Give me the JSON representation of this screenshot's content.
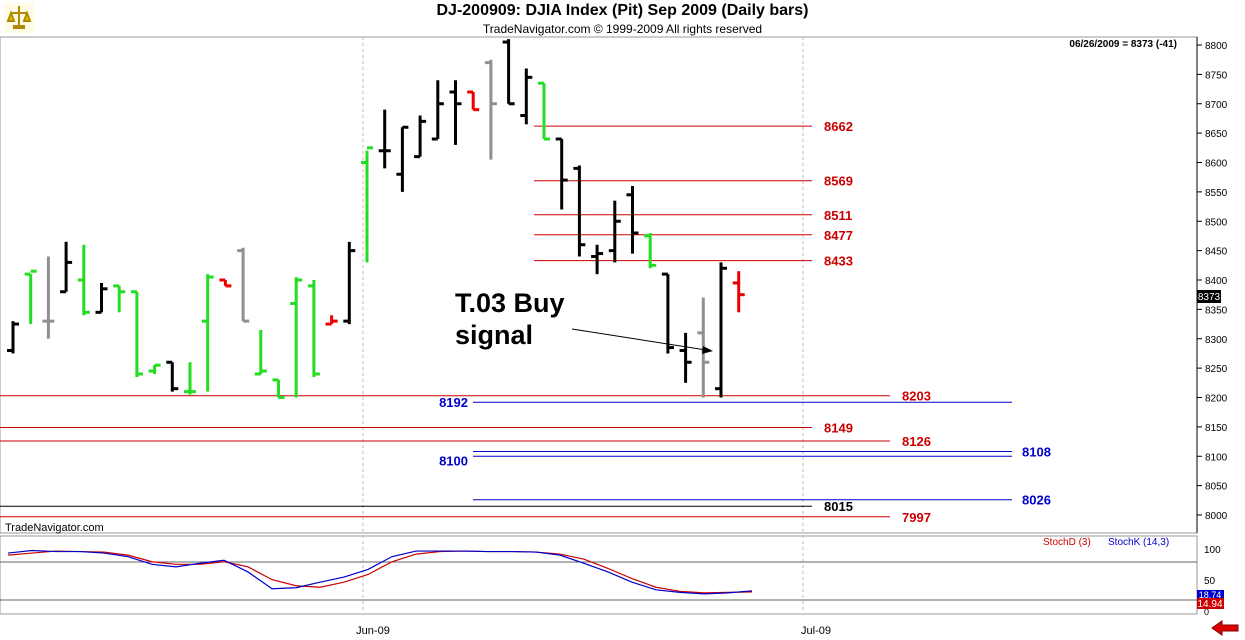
{
  "header": {
    "title": "DJ-200909:  DJIA Index (Pit) Sep 2009  (Daily bars)",
    "copyright": "TradeNavigator.com © 1999-2009 All rights reserved"
  },
  "readout": "06/26/2009 = 8373 (-41)",
  "watermark": "TradeNavigator.com",
  "last_price": "8373",
  "annotation": {
    "line1": "T.03 Buy",
    "line2": "signal"
  },
  "x_ticks": [
    "Jun-09",
    "Jul-09"
  ],
  "y_ticks": [
    "8800",
    "8750",
    "8700",
    "8650",
    "8600",
    "8550",
    "8500",
    "8450",
    "8400",
    "8350",
    "8300",
    "8250",
    "8200",
    "8150",
    "8100",
    "8050",
    "8000"
  ],
  "stoch": {
    "d_label": "StochD (3)",
    "k_label": "StochK (14,3)",
    "ticks": [
      "100",
      "50",
      "0"
    ],
    "k_value": "18.74",
    "d_value": "14.94",
    "colors": {
      "d": "#cc0000",
      "k": "#0000cc"
    }
  },
  "colors": {
    "up_bar": "#22dd22",
    "down_bar": "#000000",
    "gray_bar": "#909090",
    "red_bar": "#ee0000",
    "red_level": "#cc0000",
    "blue_level": "#0000cc",
    "black_level": "#000000"
  },
  "chart_data": {
    "type": "ohlc",
    "title": "DJ-200909:  DJIA Index (Pit) Sep 2009  (Daily bars)",
    "ylim": [
      7970,
      8815
    ],
    "bars": [
      {
        "o": 8280,
        "h": 8330,
        "l": 8275,
        "c": 8325,
        "k": "black"
      },
      {
        "o": 8410,
        "h": 8410,
        "l": 8325,
        "c": 8415,
        "k": "green"
      },
      {
        "o": 8330,
        "h": 8440,
        "l": 8300,
        "c": 8330,
        "k": "gray"
      },
      {
        "o": 8380,
        "h": 8465,
        "l": 8380,
        "c": 8430,
        "k": "black"
      },
      {
        "o": 8400,
        "h": 8460,
        "l": 8340,
        "c": 8345,
        "k": "green"
      },
      {
        "o": 8345,
        "h": 8395,
        "l": 8345,
        "c": 8385,
        "k": "black"
      },
      {
        "o": 8390,
        "h": 8390,
        "l": 8345,
        "c": 8380,
        "k": "green"
      },
      {
        "o": 8380,
        "h": 8380,
        "l": 8235,
        "c": 8240,
        "k": "green"
      },
      {
        "o": 8245,
        "h": 8255,
        "l": 8240,
        "c": 8255,
        "k": "green"
      },
      {
        "o": 8260,
        "h": 8260,
        "l": 8210,
        "c": 8215,
        "k": "black"
      },
      {
        "o": 8210,
        "h": 8260,
        "l": 8205,
        "c": 8210,
        "k": "green"
      },
      {
        "o": 8330,
        "h": 8410,
        "l": 8210,
        "c": 8405,
        "k": "green"
      },
      {
        "o": 8400,
        "h": 8400,
        "l": 8390,
        "c": 8390,
        "k": "red"
      },
      {
        "o": 8450,
        "h": 8455,
        "l": 8330,
        "c": 8330,
        "k": "gray"
      },
      {
        "o": 8240,
        "h": 8315,
        "l": 8240,
        "c": 8245,
        "k": "green"
      },
      {
        "o": 8230,
        "h": 8230,
        "l": 8200,
        "c": 8200,
        "k": "green"
      },
      {
        "o": 8360,
        "h": 8405,
        "l": 8200,
        "c": 8400,
        "k": "green"
      },
      {
        "o": 8390,
        "h": 8400,
        "l": 8235,
        "c": 8240,
        "k": "green"
      },
      {
        "o": 8325,
        "h": 8340,
        "l": 8325,
        "c": 8330,
        "k": "red"
      },
      {
        "o": 8330,
        "h": 8465,
        "l": 8325,
        "c": 8450,
        "k": "black"
      },
      {
        "o": 8600,
        "h": 8620,
        "l": 8430,
        "c": 8625,
        "k": "green"
      },
      {
        "o": 8620,
        "h": 8690,
        "l": 8590,
        "c": 8620,
        "k": "black"
      },
      {
        "o": 8580,
        "h": 8660,
        "l": 8550,
        "c": 8660,
        "k": "black"
      },
      {
        "o": 8610,
        "h": 8680,
        "l": 8610,
        "c": 8670,
        "k": "black"
      },
      {
        "o": 8640,
        "h": 8740,
        "l": 8640,
        "c": 8700,
        "k": "black"
      },
      {
        "o": 8720,
        "h": 8740,
        "l": 8630,
        "c": 8700,
        "k": "black"
      },
      {
        "o": 8720,
        "h": 8720,
        "l": 8690,
        "c": 8690,
        "k": "red"
      },
      {
        "o": 8770,
        "h": 8775,
        "l": 8605,
        "c": 8700,
        "k": "gray"
      },
      {
        "o": 8805,
        "h": 8810,
        "l": 8700,
        "c": 8700,
        "k": "black"
      },
      {
        "o": 8680,
        "h": 8760,
        "l": 8665,
        "c": 8745,
        "k": "black"
      },
      {
        "o": 8735,
        "h": 8735,
        "l": 8640,
        "c": 8640,
        "k": "green"
      },
      {
        "o": 8640,
        "h": 8640,
        "l": 8520,
        "c": 8570,
        "k": "black"
      },
      {
        "o": 8590,
        "h": 8595,
        "l": 8440,
        "c": 8460,
        "k": "black"
      },
      {
        "o": 8440,
        "h": 8460,
        "l": 8410,
        "c": 8445,
        "k": "black"
      },
      {
        "o": 8450,
        "h": 8535,
        "l": 8430,
        "c": 8500,
        "k": "black"
      },
      {
        "o": 8545,
        "h": 8560,
        "l": 8445,
        "c": 8480,
        "k": "black"
      },
      {
        "o": 8475,
        "h": 8480,
        "l": 8420,
        "c": 8425,
        "k": "green"
      },
      {
        "o": 8410,
        "h": 8410,
        "l": 8275,
        "c": 8285,
        "k": "black"
      },
      {
        "o": 8280,
        "h": 8310,
        "l": 8225,
        "c": 8260,
        "k": "black"
      },
      {
        "o": 8310,
        "h": 8370,
        "l": 8200,
        "c": 8260,
        "k": "gray"
      },
      {
        "o": 8215,
        "h": 8430,
        "l": 8200,
        "c": 8420,
        "k": "black"
      },
      {
        "o": 8395,
        "h": 8415,
        "l": 8345,
        "c": 8375,
        "k": "red"
      }
    ],
    "levels": [
      {
        "label": "8662",
        "value": 8662,
        "color": "red"
      },
      {
        "label": "8569",
        "value": 8569,
        "color": "red"
      },
      {
        "label": "8511",
        "value": 8511,
        "color": "red"
      },
      {
        "label": "8477",
        "value": 8477,
        "color": "red"
      },
      {
        "label": "8433",
        "value": 8433,
        "color": "red"
      },
      {
        "label": "8203",
        "value": 8203,
        "color": "red"
      },
      {
        "label": "8192",
        "value": 8192,
        "color": "blue"
      },
      {
        "label": "8149",
        "value": 8149,
        "color": "red"
      },
      {
        "label": "8126",
        "value": 8126,
        "color": "red"
      },
      {
        "label": "8108",
        "value": 8108,
        "color": "blue"
      },
      {
        "label": "8100",
        "value": 8100,
        "color": "blue"
      },
      {
        "label": "8026",
        "value": 8026,
        "color": "blue"
      },
      {
        "label": "8015",
        "value": 8015,
        "color": "black"
      },
      {
        "label": "7997",
        "value": 7997,
        "color": "red"
      }
    ],
    "stoch_k": [
      92,
      97,
      95,
      95,
      92,
      85,
      70,
      65,
      72,
      78,
      55,
      22,
      24,
      35,
      45,
      60,
      85,
      96,
      96,
      96,
      95,
      95,
      94,
      88,
      72,
      55,
      35,
      20,
      15,
      12,
      14,
      18
    ],
    "stoch_d": [
      88,
      92,
      96,
      95,
      94,
      88,
      75,
      70,
      70,
      75,
      65,
      40,
      28,
      25,
      35,
      50,
      75,
      90,
      95,
      96,
      95,
      95,
      94,
      90,
      80,
      62,
      42,
      25,
      17,
      14,
      15,
      16
    ]
  }
}
